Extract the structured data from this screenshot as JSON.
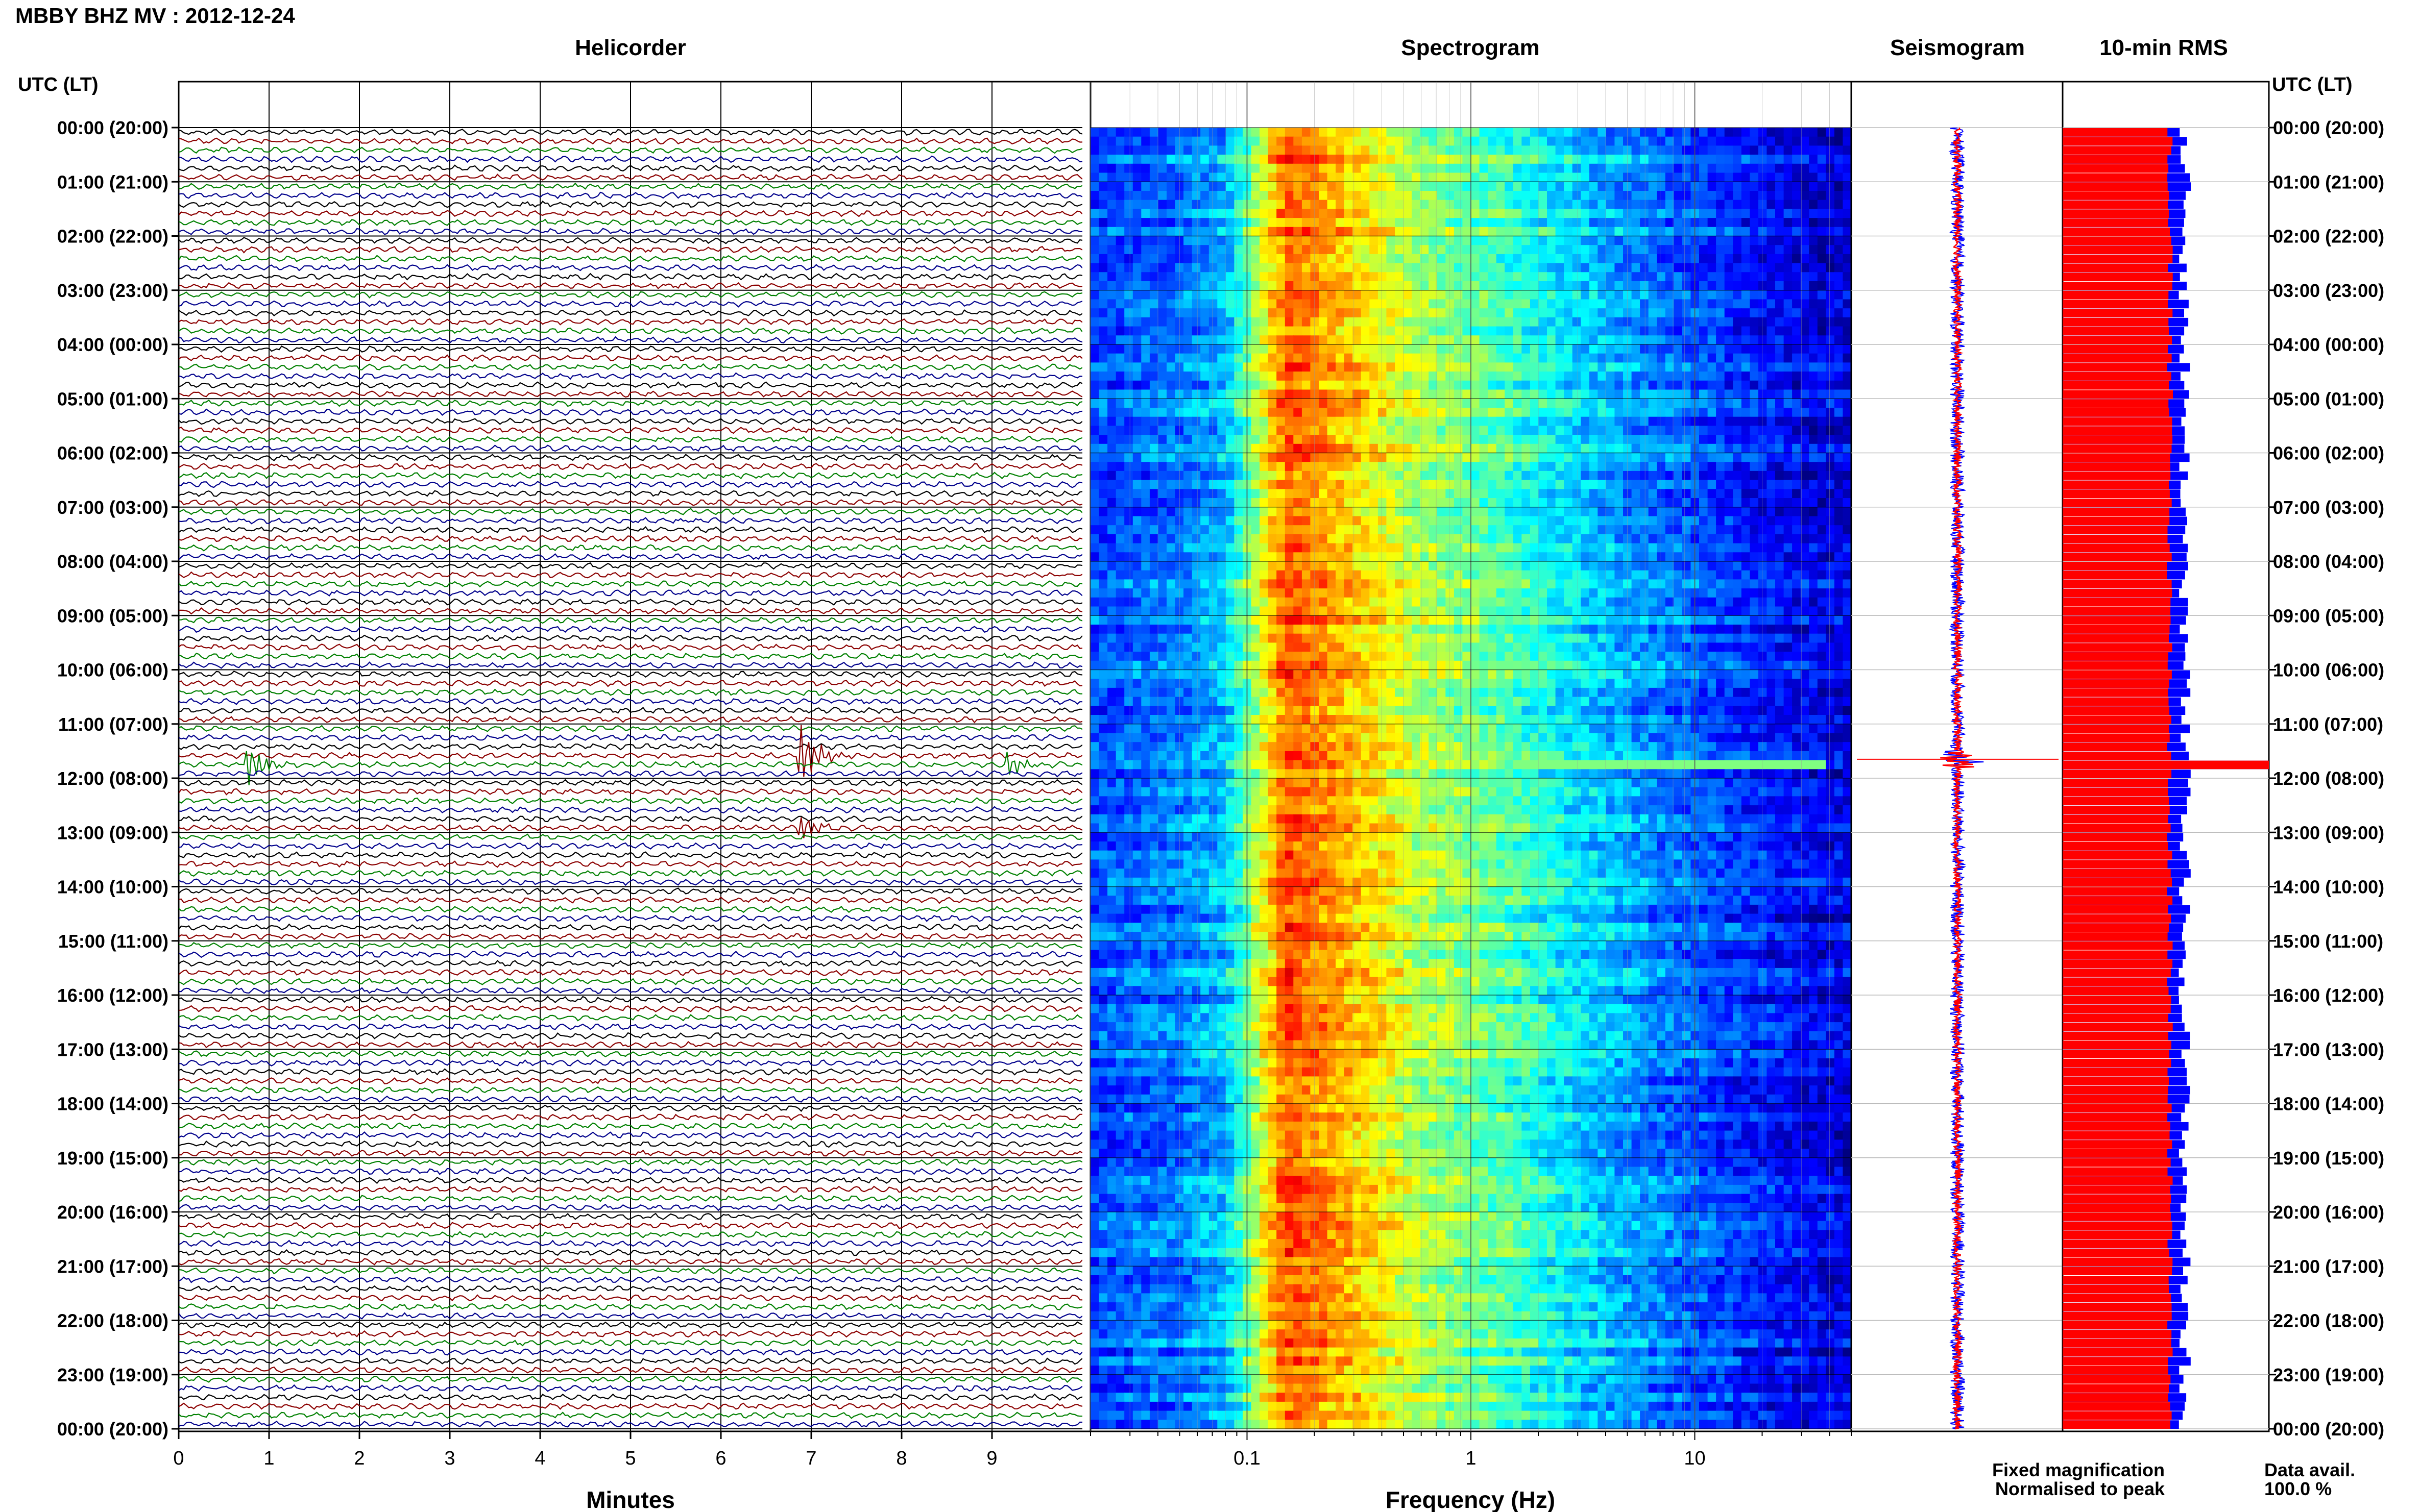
{
  "header": {
    "title": "MBBY BHZ MV : 2012-12-24",
    "utc_lt_label_left": "UTC (LT)",
    "utc_lt_label_right": "UTC (LT)"
  },
  "panels": {
    "helicorder": {
      "title": "Helicorder",
      "xlabel": "Minutes"
    },
    "spectrogram": {
      "title": "Spectrogram",
      "xlabel": "Frequency (Hz)"
    },
    "seismogram": {
      "title": "Seismogram"
    },
    "rms": {
      "title": "10-min RMS"
    }
  },
  "legend": {
    "fixed": "Fixed magnification",
    "normalised": "Normalised to peak",
    "fixed_color": "#0000ff",
    "normalised_color": "#ff0000"
  },
  "data_avail": {
    "label": "Data avail.",
    "value": "100.0 %"
  },
  "colors": {
    "trace_cycle": [
      "#000000",
      "#8b0000",
      "#008000",
      "#00008b"
    ],
    "spectrogram_colormap": "jet",
    "event_trace": "#8b0000",
    "event_trace_2": "#00008b"
  },
  "chart_data": [
    {
      "type": "line",
      "name": "helicorder",
      "title": "Helicorder",
      "xlabel": "Minutes",
      "xlim": [
        0,
        10
      ],
      "x_ticks": [
        "0",
        "1",
        "2",
        "3",
        "4",
        "5",
        "6",
        "7",
        "8",
        "9"
      ],
      "y_tick_labels": [
        "00:00 (20:00)",
        "01:00 (21:00)",
        "02:00 (22:00)",
        "03:00 (23:00)",
        "04:00 (00:00)",
        "05:00 (01:00)",
        "06:00 (02:00)",
        "07:00 (03:00)",
        "08:00 (04:00)",
        "09:00 (05:00)",
        "10:00 (06:00)",
        "11:00 (07:00)",
        "12:00 (08:00)",
        "13:00 (09:00)",
        "14:00 (10:00)",
        "15:00 (11:00)",
        "16:00 (12:00)",
        "17:00 (13:00)",
        "18:00 (14:00)",
        "19:00 (15:00)",
        "20:00 (16:00)",
        "21:00 (17:00)",
        "22:00 (18:00)",
        "23:00 (19:00)",
        "00:00 (20:00)"
      ],
      "lines_per_hour": 6,
      "events": [
        {
          "hour": 11.7,
          "minute": 0.75,
          "amplitude": 4
        },
        {
          "hour": 11.5,
          "minute": 6.9,
          "amplitude": 5
        },
        {
          "hour": 11.6,
          "minute": 9.2,
          "amplitude": 2
        },
        {
          "hour": 12.8,
          "minute": 6.9,
          "amplitude": 2
        }
      ]
    },
    {
      "type": "heatmap",
      "name": "spectrogram",
      "title": "Spectrogram",
      "xlabel": "Frequency (Hz)",
      "x_scale": "log",
      "xlim": [
        0.02,
        50
      ],
      "x_ticks": [
        "0.1",
        "1",
        "10"
      ],
      "band_profile": [
        {
          "f": 0.02,
          "level": 0.2
        },
        {
          "f": 0.05,
          "level": 0.25
        },
        {
          "f": 0.08,
          "level": 0.32
        },
        {
          "f": 0.11,
          "level": 0.55
        },
        {
          "f": 0.15,
          "level": 0.8
        },
        {
          "f": 0.3,
          "level": 0.68
        },
        {
          "f": 0.6,
          "level": 0.55
        },
        {
          "f": 1.5,
          "level": 0.45
        },
        {
          "f": 3,
          "level": 0.35
        },
        {
          "f": 7,
          "level": 0.25
        },
        {
          "f": 15,
          "level": 0.18
        },
        {
          "f": 30,
          "level": 0.12
        },
        {
          "f": 50,
          "level": 0.1
        }
      ],
      "event_line": {
        "hour": 11.65,
        "f_from": 1.5,
        "f_to": 40
      }
    },
    {
      "type": "line",
      "name": "seismogram",
      "title": "Seismogram",
      "event_hour": 11.65
    },
    {
      "type": "bar",
      "name": "rms",
      "title": "10-min RMS",
      "orientation": "horizontal",
      "series": [
        {
          "name": "Fixed magnification",
          "color": "#0000ff"
        },
        {
          "name": "Normalised to peak",
          "color": "#ff0000"
        }
      ],
      "baseline_fixed": 0.58,
      "baseline_normalised": 0.52,
      "peak": {
        "hour": 11.65,
        "value": 1.0
      }
    }
  ]
}
